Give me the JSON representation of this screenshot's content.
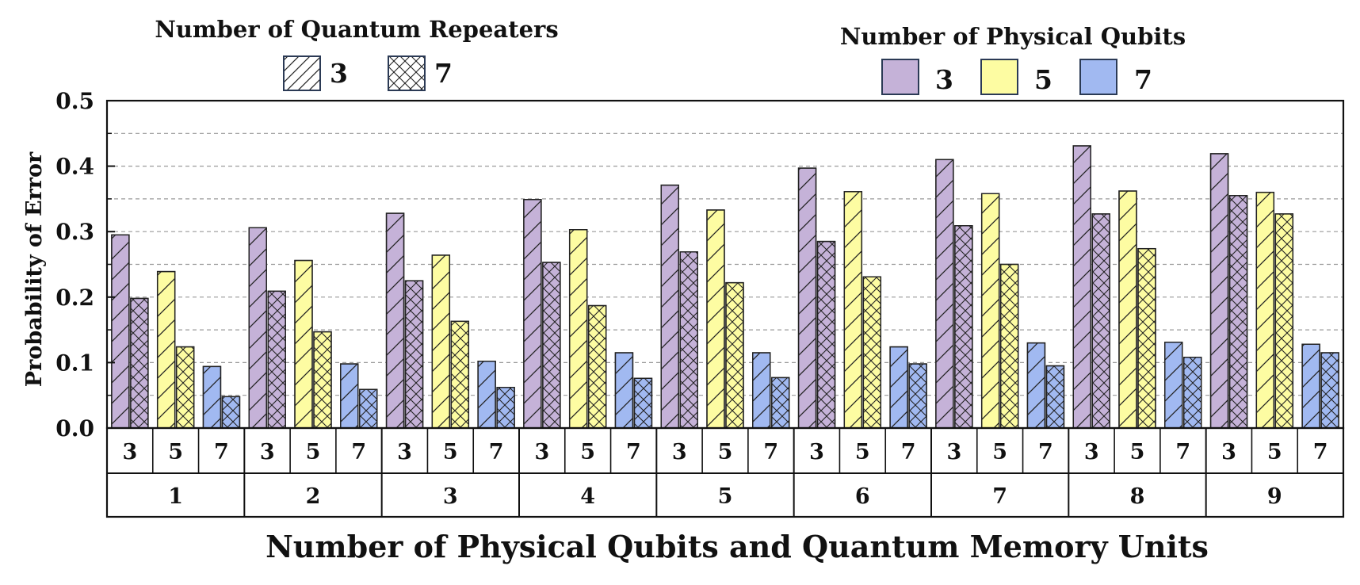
{
  "chart_data": {
    "type": "bar",
    "title": "",
    "xlabel": "Number of Physical Qubits and Quantum Memory Units",
    "ylabel": "Probability of Error",
    "ylim": [
      0,
      0.5
    ],
    "yticks": [
      "0.0",
      "0.1",
      "0.2",
      "0.3",
      "0.4",
      "0.5"
    ],
    "grid": true,
    "outer_categories": [
      "1",
      "2",
      "3",
      "4",
      "5",
      "6",
      "7",
      "8",
      "9"
    ],
    "inner_categories": [
      "3",
      "5",
      "7"
    ],
    "legend_repeaters": {
      "title": "Number of Quantum Repeaters",
      "entries": [
        {
          "label": "3",
          "pattern": "diagonal"
        },
        {
          "label": "7",
          "pattern": "crosshatch"
        }
      ]
    },
    "legend_qubits": {
      "title": "Number of Physical Qubits",
      "entries": [
        {
          "label": "3",
          "color": "#c5b2d8"
        },
        {
          "label": "5",
          "color": "#fdfca2"
        },
        {
          "label": "7",
          "color": "#a1b9f1"
        }
      ]
    },
    "series": [
      {
        "qubits": "3",
        "repeaters": "3",
        "values": [
          0.295,
          0.306,
          0.328,
          0.349,
          0.371,
          0.397,
          0.41,
          0.431,
          0.419
        ]
      },
      {
        "qubits": "3",
        "repeaters": "7",
        "values": [
          0.198,
          0.209,
          0.225,
          0.253,
          0.269,
          0.285,
          0.309,
          0.327,
          0.355
        ]
      },
      {
        "qubits": "5",
        "repeaters": "3",
        "values": [
          0.239,
          0.256,
          0.264,
          0.303,
          0.333,
          0.361,
          0.358,
          0.362,
          0.36
        ]
      },
      {
        "qubits": "5",
        "repeaters": "7",
        "values": [
          0.124,
          0.147,
          0.163,
          0.187,
          0.222,
          0.231,
          0.25,
          0.274,
          0.327
        ]
      },
      {
        "qubits": "7",
        "repeaters": "3",
        "values": [
          0.094,
          0.098,
          0.102,
          0.115,
          0.115,
          0.124,
          0.13,
          0.131,
          0.128
        ]
      },
      {
        "qubits": "7",
        "repeaters": "7",
        "values": [
          0.048,
          0.059,
          0.062,
          0.076,
          0.077,
          0.098,
          0.095,
          0.108,
          0.115
        ]
      }
    ]
  }
}
